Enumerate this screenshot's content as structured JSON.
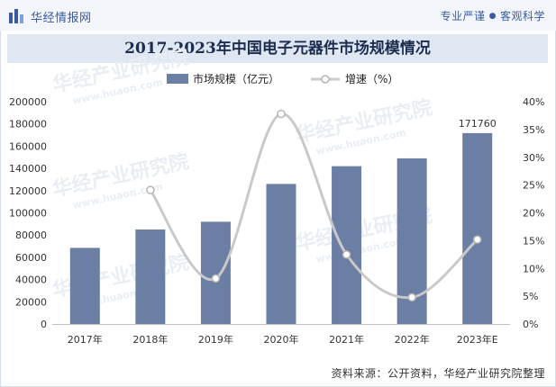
{
  "header": {
    "brand_name": "华经情报网",
    "slogan_left": "专业严谨",
    "slogan_sep": "●",
    "slogan_right": "客观科学"
  },
  "watermark": {
    "text": "华经产业研究院",
    "url": "www.huaon.com"
  },
  "source_text": "资料来源：公开资料，华经产业研究院整理",
  "colors": {
    "bar": "#6b7ea3",
    "line": "#c9c9c9",
    "marker_fill": "#ffffff",
    "title_bg": "#dfe7f2",
    "brand": "#3b5aa3"
  },
  "chart_data": {
    "type": "bar",
    "title": "2017-2023年中国电子元器件市场规模情况",
    "categories": [
      "2017年",
      "2018年",
      "2019年",
      "2020年",
      "2021年",
      "2022年",
      "2023年E"
    ],
    "series": [
      {
        "name": "市场规模（亿元）",
        "type": "bar",
        "axis": "left",
        "values": [
          68500,
          85000,
          92000,
          126000,
          142000,
          149000,
          171760
        ]
      },
      {
        "name": "增速（%）",
        "type": "line",
        "axis": "right",
        "values": [
          null,
          24.1,
          8.2,
          37.8,
          12.5,
          4.8,
          15.2
        ]
      }
    ],
    "data_labels": [
      {
        "category": "2023年E",
        "text": "171760"
      }
    ],
    "y_left": {
      "ylim": [
        0,
        200000
      ],
      "ticks": [
        "0",
        "20000",
        "40000",
        "60000",
        "80000",
        "100000",
        "120000",
        "140000",
        "160000",
        "180000",
        "200000"
      ]
    },
    "y_right": {
      "ylim": [
        0,
        40
      ],
      "ticks": [
        "0%",
        "5%",
        "10%",
        "15%",
        "20%",
        "25%",
        "30%",
        "35%",
        "40%"
      ]
    },
    "grid": false,
    "legend_position": "top-center"
  }
}
